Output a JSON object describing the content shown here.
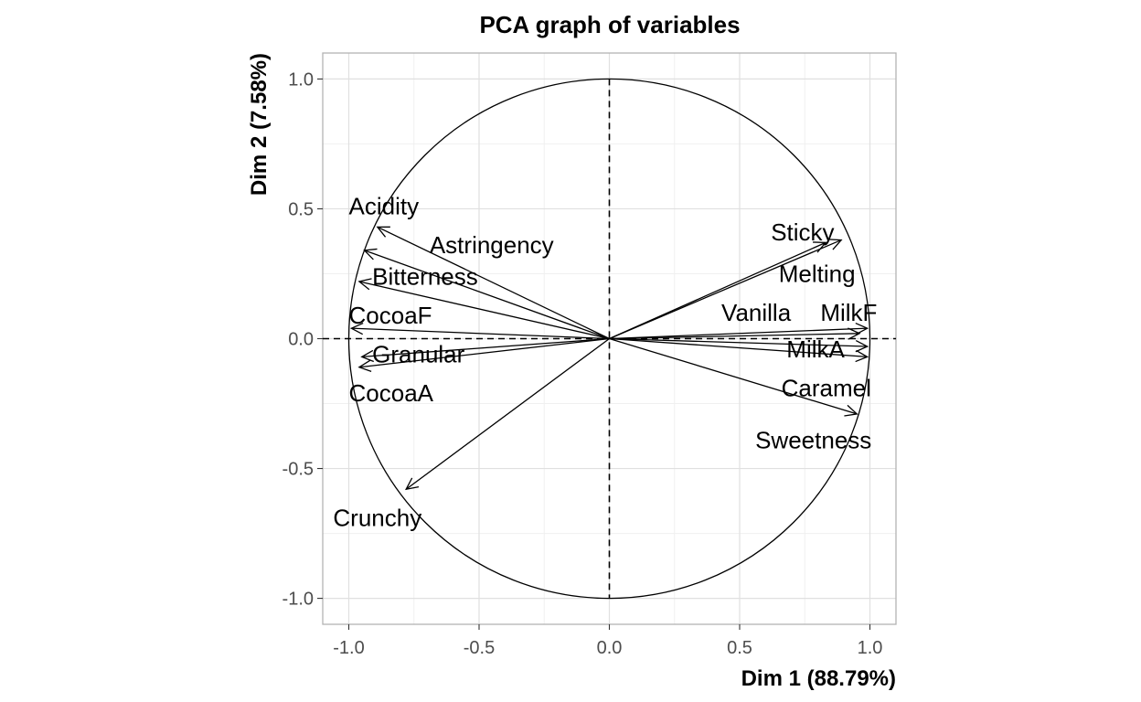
{
  "chart_data": {
    "type": "scatter",
    "subtype": "pca-correlation-circle",
    "title": "PCA graph of variables",
    "xlabel": "Dim 1 (88.79%)",
    "ylabel": "Dim 2 (7.58%)",
    "xlim": [
      -1.1,
      1.1
    ],
    "ylim": [
      -1.1,
      1.1
    ],
    "xticks": [
      "-1.0",
      "-0.5",
      "0.0",
      "0.5",
      "1.0"
    ],
    "yticks": [
      "1.0",
      "0.5",
      "0.0",
      "-0.5",
      "-1.0"
    ],
    "xtick_values": [
      -1.0,
      -0.5,
      0.0,
      0.5,
      1.0
    ],
    "ytick_values": [
      1.0,
      0.5,
      0.0,
      -0.5,
      -1.0
    ],
    "grid": true,
    "unit_circle": true,
    "variables": [
      {
        "name": "Acidity",
        "x": -0.89,
        "y": 0.43
      },
      {
        "name": "Astringency",
        "x": -0.94,
        "y": 0.34
      },
      {
        "name": "Bitterness",
        "x": -0.96,
        "y": 0.22
      },
      {
        "name": "CocoaF",
        "x": -0.99,
        "y": 0.04
      },
      {
        "name": "Granular",
        "x": -0.95,
        "y": -0.07
      },
      {
        "name": "CocoaA",
        "x": -0.96,
        "y": -0.11
      },
      {
        "name": "Crunchy",
        "x": -0.78,
        "y": -0.58
      },
      {
        "name": "Sticky",
        "x": 0.83,
        "y": 0.37
      },
      {
        "name": "Melting",
        "x": 0.89,
        "y": 0.38
      },
      {
        "name": "Vanilla",
        "x": 0.96,
        "y": 0.02
      },
      {
        "name": "MilkF",
        "x": 0.99,
        "y": 0.04
      },
      {
        "name": "MilkA",
        "x": 0.99,
        "y": -0.03
      },
      {
        "name": "Caramel",
        "x": 0.99,
        "y": -0.07
      },
      {
        "name": "Sweetness",
        "x": 0.95,
        "y": -0.29
      }
    ]
  }
}
